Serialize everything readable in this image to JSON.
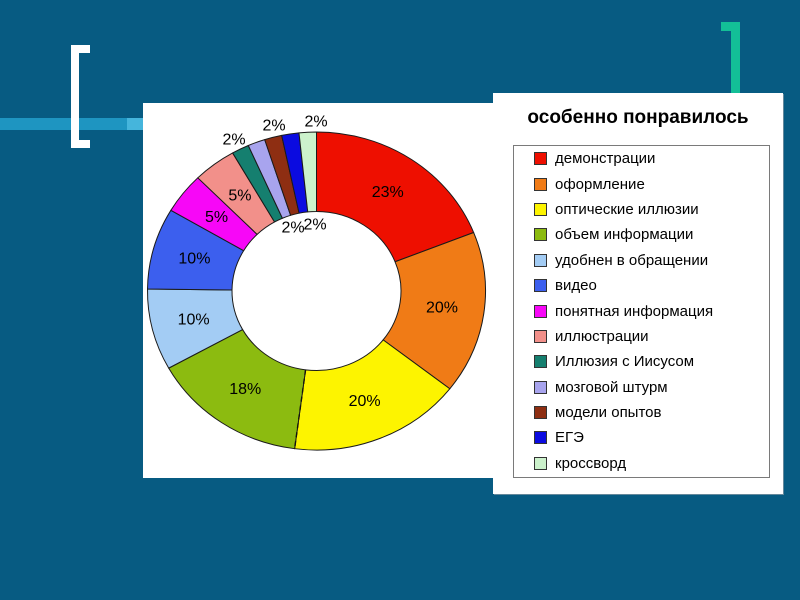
{
  "slide": {
    "background_color": "#075b82",
    "decorations": {
      "left_bracket_color": "#ffffff",
      "right_corner_color": "#13bf97",
      "band_color": "#1e95c1",
      "band_tip_color": "#45b5dc"
    }
  },
  "legend": {
    "title": "особенно понравилось"
  },
  "chart_data": {
    "type": "pie",
    "subtype": "donut",
    "hole_ratio": 0.5,
    "title": "особенно понравилось",
    "unit": "%",
    "legend_position": "right",
    "labels": [
      "демонстрации",
      "оформление",
      "оптические иллюзии",
      "объем информации",
      "удобнен в обращении",
      "видео",
      "понятная информация",
      "иллюстрации",
      "Иллюзия с Иисусом",
      "мозговой штурм",
      "модели опытов",
      "ЕГЭ",
      "кроссворд"
    ],
    "values": [
      23,
      20,
      20,
      18,
      10,
      10,
      5,
      5,
      2,
      2,
      2,
      2,
      2
    ],
    "colors": [
      "#ee0f00",
      "#f07b16",
      "#fdf400",
      "#8cbb10",
      "#a3ccf4",
      "#3c5fee",
      "#f707f7",
      "#f2908a",
      "#157f6f",
      "#a8a4ee",
      "#8e2e12",
      "#0b0be0",
      "#ccf2cc"
    ]
  }
}
